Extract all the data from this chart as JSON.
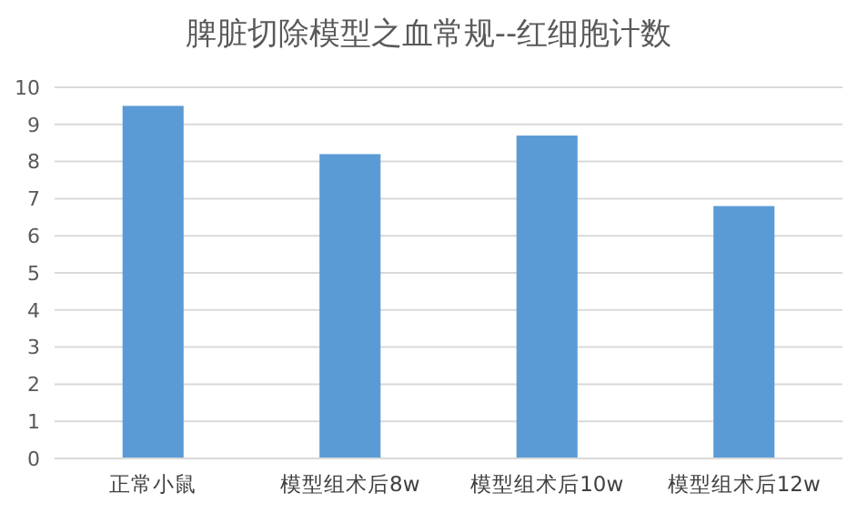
{
  "chart_data": {
    "type": "bar",
    "title": "脾脏切除模型之血常规--红细胞计数",
    "categories": [
      "正常小鼠",
      "模型组术后8w",
      "模型组术后10w",
      "模型组术后12w"
    ],
    "values": [
      9.5,
      8.2,
      8.7,
      6.8
    ],
    "color": "#5b9bd5",
    "ylim": [
      0,
      10
    ],
    "yticks": [
      0,
      1,
      2,
      3,
      4,
      5,
      6,
      7,
      8,
      9,
      10
    ],
    "grid": "y"
  }
}
